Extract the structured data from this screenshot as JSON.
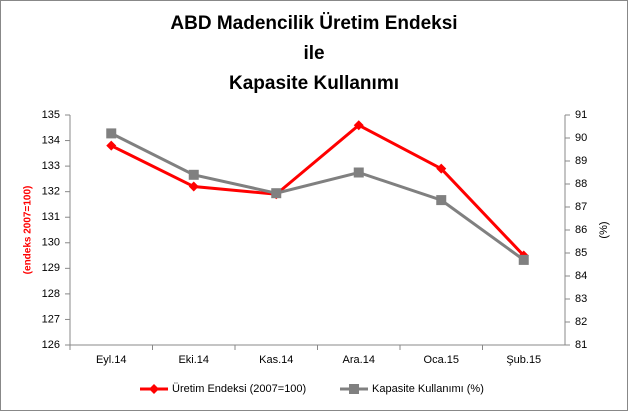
{
  "chart_data": {
    "type": "line",
    "title": [
      "ABD Madencilik Üretim Endeksi",
      "ile",
      "Kapasite Kullanımı"
    ],
    "y_label": "(endeks 2007=100)",
    "y2_label": "(%)",
    "categories": [
      "Eyl.14",
      "Eki.14",
      "Kas.14",
      "Ara.14",
      "Oca.15",
      "Şub.15"
    ],
    "series": [
      {
        "name": "Üretim Endeksi (2007=100)",
        "color": "#ff0000",
        "marker": "diamond",
        "values": [
          133.8,
          132.2,
          131.9,
          134.6,
          132.9,
          129.5
        ]
      },
      {
        "name": "Kapasite Kullanımı (%)",
        "color": "#808080",
        "marker": "square",
        "axis": "y2",
        "values": [
          90.2,
          88.4,
          87.6,
          88.5,
          87.3,
          84.7
        ]
      }
    ],
    "ylim": [
      126,
      135
    ],
    "yticks": [
      126,
      127,
      128,
      129,
      130,
      131,
      132,
      133,
      134,
      135
    ],
    "y2lim": [
      81,
      91
    ],
    "y2ticks": [
      81,
      82,
      83,
      84,
      85,
      86,
      87,
      88,
      89,
      90,
      91
    ],
    "legend": "bottom"
  }
}
